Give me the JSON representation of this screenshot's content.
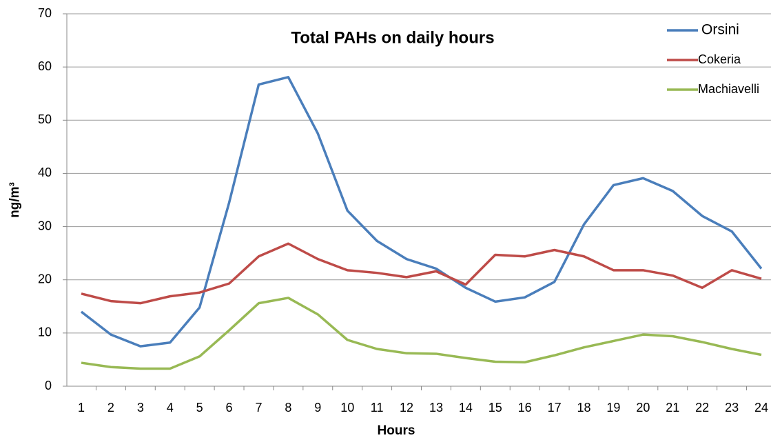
{
  "chart_data": {
    "type": "line",
    "title": "Total PAHs on daily hours",
    "x_label": "Hours",
    "y_label": "ng/m³",
    "categories": [
      "1",
      "2",
      "3",
      "4",
      "5",
      "6",
      "7",
      "8",
      "9",
      "10",
      "11",
      "12",
      "13",
      "14",
      "15",
      "16",
      "17",
      "18",
      "19",
      "20",
      "21",
      "22",
      "23",
      "24"
    ],
    "series": [
      {
        "name": "Orsini",
        "color": "#4a7ebb",
        "values": [
          14,
          9.7,
          7.5,
          8.2,
          14.8,
          34.5,
          56.7,
          58.1,
          47.5,
          33,
          27.3,
          23.9,
          22.1,
          18.5,
          15.9,
          16.7,
          19.6,
          30.4,
          37.8,
          39.1,
          36.7,
          32,
          29.1,
          22.1
        ]
      },
      {
        "name": "Cokeria",
        "color": "#be4b48",
        "values": [
          17.4,
          16,
          15.6,
          16.9,
          17.6,
          19.3,
          24.4,
          26.8,
          23.9,
          21.8,
          21.3,
          20.5,
          21.6,
          19.1,
          24.7,
          24.4,
          25.6,
          24.4,
          21.8,
          21.8,
          20.8,
          18.5,
          21.8,
          20.2
        ]
      },
      {
        "name": "Machiavelli",
        "color": "#98b954",
        "values": [
          4.4,
          3.6,
          3.3,
          3.3,
          5.6,
          10.5,
          15.6,
          16.6,
          13.5,
          8.7,
          7,
          6.2,
          6.1,
          5.3,
          4.6,
          4.5,
          5.8,
          7.3,
          8.5,
          9.7,
          9.4,
          8.3,
          7,
          5.9
        ]
      }
    ],
    "ylim": [
      0,
      70
    ],
    "yticks": [
      0,
      10,
      20,
      30,
      40,
      50,
      60,
      70
    ],
    "grid": true,
    "legend": "top-right"
  }
}
